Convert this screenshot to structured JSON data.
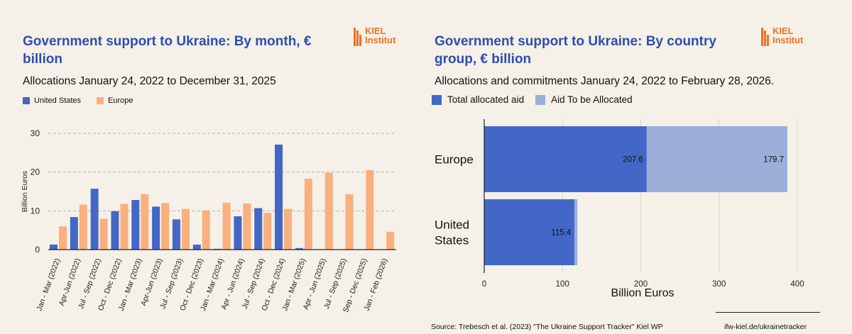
{
  "colors": {
    "us": "#4367c6",
    "europe": "#f9b07f",
    "allocated": "#4367c6",
    "to_allocate": "#9cafd9",
    "title": "#2d4eb0",
    "logo": "#f36f21"
  },
  "logo": {
    "line1": "KIEL",
    "line2": "Institut"
  },
  "left": {
    "title_line1": "Government support to Ukraine: By month, €",
    "title_line2": "billion",
    "subtitle": "Allocations January 24, 2022 to December 31, 2025",
    "legend": {
      "us": "United States",
      "europe": "Europe"
    }
  },
  "right": {
    "title_line1": "Government support to Ukraine: By country",
    "title_line2": "group, € billion",
    "subtitle": "Allocations and commitments January 24, 2022 to February 28, 2026.",
    "legend": {
      "allocated": "Total allocated aid",
      "to_allocate": "Aid To be Allocated"
    }
  },
  "footer": {
    "source": "Source: Trebesch et al. (2023) \"The Ukraine Support Tracker\" Kiel WP",
    "url": "ifw-kiel.de/ukrainetracker"
  },
  "chart_data": [
    {
      "type": "bar",
      "title": "Government support to Ukraine: By month, € billion",
      "ylabel": "Billion Euros",
      "xlabel": "",
      "ylim": [
        0,
        30
      ],
      "yticks": [
        0,
        10,
        20,
        30
      ],
      "grid": true,
      "categories": [
        "Jan - Mar (2022)",
        "Apr-Jun (2022)",
        "Jul - Sep (2022)",
        "Oct - Dec (2022)",
        "Jan - Mar (2023)",
        "Apr-Jun (2023)",
        "Jul - Sep (2023)",
        "Oct - Dec (2023)",
        "Jan - Mar (2024)",
        "Apr - Jun (2024)",
        "Jul - Sep (2024)",
        "Oct - Dec (2024)",
        "Jan - Mar (2025)",
        "Apr - Jun (2025)",
        "Jul - Sep (2025)",
        "Sep - Dec (2025)",
        "Jan - Feb (2026)"
      ],
      "series": [
        {
          "name": "United States",
          "values": [
            1.3,
            8.4,
            15.7,
            9.9,
            12.8,
            11.1,
            7.8,
            1.3,
            0.2,
            8.6,
            10.7,
            27.1,
            0.4,
            0,
            0,
            0,
            0
          ]
        },
        {
          "name": "Europe",
          "values": [
            6.0,
            11.6,
            8.0,
            11.8,
            14.3,
            12.0,
            10.5,
            10.1,
            12.1,
            11.9,
            9.5,
            10.5,
            18.3,
            19.8,
            14.3,
            20.5,
            4.6
          ]
        }
      ]
    },
    {
      "type": "bar",
      "orientation": "horizontal",
      "stacked": true,
      "title": "Government support to Ukraine: By country group, € billion",
      "xlabel": "Billion Euros",
      "xlim": [
        0,
        400
      ],
      "xticks": [
        0,
        100,
        200,
        300,
        400
      ],
      "categories": [
        "Europe",
        "United States"
      ],
      "category_lines": [
        [
          "Europe"
        ],
        [
          "United",
          "States"
        ]
      ],
      "series": [
        {
          "name": "Total allocated aid",
          "values": [
            207.6,
            115.4
          ],
          "labels": [
            "207.6",
            "115.4"
          ]
        },
        {
          "name": "Aid To be Allocated",
          "values": [
            179.7,
            3.6
          ],
          "labels": [
            "179.7",
            ""
          ]
        }
      ]
    }
  ]
}
